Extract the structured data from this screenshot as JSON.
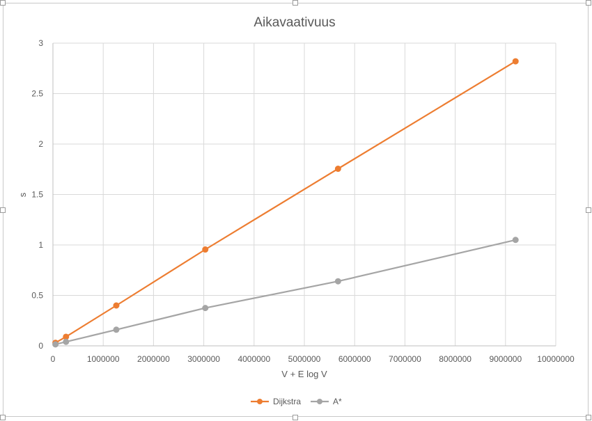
{
  "chart_data": {
    "type": "line",
    "title": "Aikavaativuus",
    "xlabel": "V + E log V",
    "ylabel": "s",
    "xlim": [
      0,
      10000000
    ],
    "ylim": [
      0,
      3
    ],
    "x_ticks": [
      "0",
      "1000000",
      "2000000",
      "3000000",
      "4000000",
      "5000000",
      "6000000",
      "7000000",
      "8000000",
      "9000000",
      "10000000"
    ],
    "y_ticks": [
      "0",
      "0.5",
      "1",
      "1.5",
      "2",
      "2.5",
      "3"
    ],
    "grid": true,
    "legend_position": "bottom",
    "series": [
      {
        "name": "Dijkstra",
        "color": "#ED7D31",
        "x": [
          50000,
          260000,
          1260000,
          3030000,
          5670000,
          9200000
        ],
        "y": [
          0.03,
          0.09,
          0.4,
          0.955,
          1.755,
          2.82
        ]
      },
      {
        "name": "A*",
        "color": "#A5A5A5",
        "x": [
          50000,
          260000,
          1260000,
          3030000,
          5670000,
          9200000
        ],
        "y": [
          0.015,
          0.04,
          0.16,
          0.375,
          0.64,
          1.05
        ]
      }
    ]
  }
}
